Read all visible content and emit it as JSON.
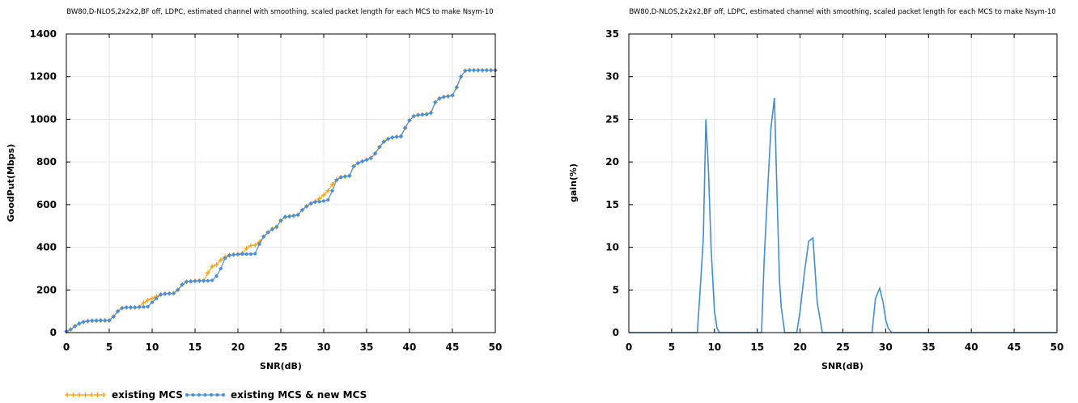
{
  "chart_data": [
    {
      "type": "line",
      "title": "BW80,D-NLOS,2x2x2,BF off, LDPC, estimated channel with smoothing, scaled packet length for each MCS to make Nsym-10",
      "xlabel": "SNR(dB)",
      "ylabel": "GoodPut(Mbps)",
      "xlim": [
        0,
        50
      ],
      "ylim": [
        0,
        1400
      ],
      "xticks": [
        "0",
        "5",
        "10",
        "15",
        "20",
        "25",
        "30",
        "35",
        "40",
        "45",
        "50"
      ],
      "yticks": [
        "0",
        "200",
        "400",
        "600",
        "800",
        "1000",
        "1200",
        "1400"
      ],
      "grid": true,
      "legend_position": "bottom",
      "x": [
        0,
        0.5,
        1,
        1.5,
        2,
        2.5,
        3,
        3.5,
        4,
        4.5,
        5,
        5.5,
        6,
        6.5,
        7,
        7.5,
        8,
        8.5,
        9,
        9.5,
        10,
        10.5,
        11,
        11.5,
        12,
        12.5,
        13,
        13.5,
        14,
        14.5,
        15,
        15.5,
        16,
        16.5,
        17,
        17.5,
        18,
        18.5,
        19,
        19.5,
        20,
        20.5,
        21,
        21.5,
        22,
        22.5,
        23,
        23.5,
        24,
        24.5,
        25,
        25.5,
        26,
        26.5,
        27,
        27.5,
        28,
        28.5,
        29,
        29.5,
        30,
        30.5,
        31,
        31.5,
        32,
        32.5,
        33,
        33.5,
        34,
        34.5,
        35,
        35.5,
        36,
        36.5,
        37,
        37.5,
        38,
        38.5,
        39,
        39.5,
        40,
        40.5,
        41,
        41.5,
        42,
        42.5,
        43,
        43.5,
        44,
        44.5,
        45,
        45.5,
        46,
        46.5,
        47,
        47.5,
        48,
        48.5,
        49,
        49.5,
        50
      ],
      "series": [
        {
          "name": "existing MCS",
          "color": "#f5a31a",
          "marker": "plus",
          "values": [
            5,
            15,
            30,
            42,
            50,
            54,
            56,
            56,
            57,
            57,
            57,
            75,
            100,
            115,
            118,
            118,
            118,
            120,
            140,
            152,
            160,
            170,
            178,
            182,
            183,
            184,
            200,
            225,
            238,
            240,
            242,
            243,
            243,
            280,
            310,
            318,
            340,
            355,
            363,
            365,
            367,
            372,
            395,
            408,
            410,
            425,
            450,
            470,
            485,
            495,
            525,
            542,
            545,
            548,
            552,
            575,
            592,
            605,
            615,
            628,
            645,
            665,
            695,
            718,
            728,
            732,
            735,
            780,
            795,
            803,
            810,
            818,
            840,
            870,
            895,
            908,
            915,
            918,
            920,
            960,
            995,
            1015,
            1020,
            1022,
            1024,
            1030,
            1080,
            1098,
            1105,
            1108,
            1112,
            1150,
            1200,
            1228,
            1230,
            1230,
            1230,
            1230,
            1230,
            1230,
            1230
          ]
        },
        {
          "name": "existing MCS & new MCS",
          "color": "#4a90d9",
          "marker": "dot",
          "values": [
            5,
            15,
            30,
            42,
            50,
            54,
            56,
            56,
            57,
            57,
            57,
            75,
            100,
            115,
            118,
            118,
            118,
            120,
            120,
            122,
            142,
            160,
            178,
            182,
            183,
            184,
            200,
            225,
            238,
            240,
            242,
            243,
            243,
            243,
            245,
            265,
            300,
            348,
            362,
            365,
            367,
            368,
            368,
            368,
            370,
            415,
            450,
            470,
            485,
            495,
            525,
            542,
            545,
            548,
            552,
            575,
            592,
            605,
            612,
            614,
            617,
            622,
            665,
            715,
            728,
            732,
            735,
            780,
            795,
            803,
            810,
            818,
            840,
            870,
            895,
            908,
            915,
            918,
            920,
            960,
            995,
            1015,
            1020,
            1022,
            1024,
            1030,
            1080,
            1098,
            1105,
            1108,
            1112,
            1150,
            1200,
            1228,
            1230,
            1230,
            1230,
            1230,
            1230,
            1230,
            1230
          ]
        }
      ]
    },
    {
      "type": "line",
      "title": "BW80,D-NLOS,2x2x2,BF off, LDPC, estimated channel with smoothing, scaled packet length for each MCS to make Nsym-10",
      "xlabel": "SNR(dB)",
      "ylabel": "gain(%)",
      "xlim": [
        0,
        50
      ],
      "ylim": [
        0,
        35
      ],
      "xticks": [
        "0",
        "5",
        "10",
        "15",
        "20",
        "25",
        "30",
        "35",
        "40",
        "45",
        "50"
      ],
      "yticks": [
        "0",
        "5",
        "10",
        "15",
        "20",
        "25",
        "30",
        "35"
      ],
      "grid": true,
      "series": [
        {
          "color": "#3f8fd2",
          "x": [
            0,
            8,
            8.3,
            8.7,
            9,
            9.3,
            9.6,
            10,
            10.3,
            10.6,
            11,
            15,
            15.5,
            15.8,
            16.2,
            16.6,
            17,
            17.3,
            17.6,
            17.8,
            18.2,
            18.6,
            19,
            19.6,
            20,
            20.5,
            21,
            21.5,
            22,
            22.6,
            23,
            28.4,
            28.8,
            29.3,
            29.7,
            30,
            30.3,
            30.7,
            50
          ],
          "y": [
            0,
            0,
            4.5,
            11,
            25,
            19,
            10,
            2.5,
            0.5,
            0,
            0,
            0,
            0,
            8.5,
            16.5,
            24,
            27.5,
            16.5,
            6,
            3,
            0,
            0,
            0,
            0,
            2.5,
            7,
            10.7,
            11.1,
            3.5,
            0,
            0,
            0,
            4,
            5.2,
            3.5,
            1.5,
            0.5,
            0,
            0
          ]
        }
      ]
    }
  ]
}
